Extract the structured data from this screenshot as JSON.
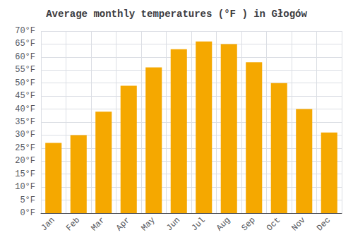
{
  "chart_data": {
    "type": "bar",
    "title": "Average monthly temperatures (°F ) in Głogów",
    "categories": [
      "Jan",
      "Feb",
      "Mar",
      "Apr",
      "May",
      "Jun",
      "Jul",
      "Aug",
      "Sep",
      "Oct",
      "Nov",
      "Dec"
    ],
    "values": [
      27,
      30,
      39,
      49,
      56,
      63,
      66,
      65,
      58,
      50,
      40,
      31
    ],
    "color": "#F5A800",
    "ylim": [
      0,
      70
    ],
    "yticks": [
      {
        "value": 0,
        "label": "0°F"
      },
      {
        "value": 5,
        "label": "5°F"
      },
      {
        "value": 10,
        "label": "10°F"
      },
      {
        "value": 15,
        "label": "15°F"
      },
      {
        "value": 20,
        "label": "20°F"
      },
      {
        "value": 25,
        "label": "25°F"
      },
      {
        "value": 30,
        "label": "30°F"
      },
      {
        "value": 35,
        "label": "35°F"
      },
      {
        "value": 40,
        "label": "40°F"
      },
      {
        "value": 45,
        "label": "45°F"
      },
      {
        "value": 50,
        "label": "50°F"
      },
      {
        "value": 55,
        "label": "55°F"
      },
      {
        "value": 60,
        "label": "60°F"
      },
      {
        "value": 65,
        "label": "65°F"
      },
      {
        "value": 70,
        "label": "70°F"
      }
    ],
    "grid": true
  }
}
